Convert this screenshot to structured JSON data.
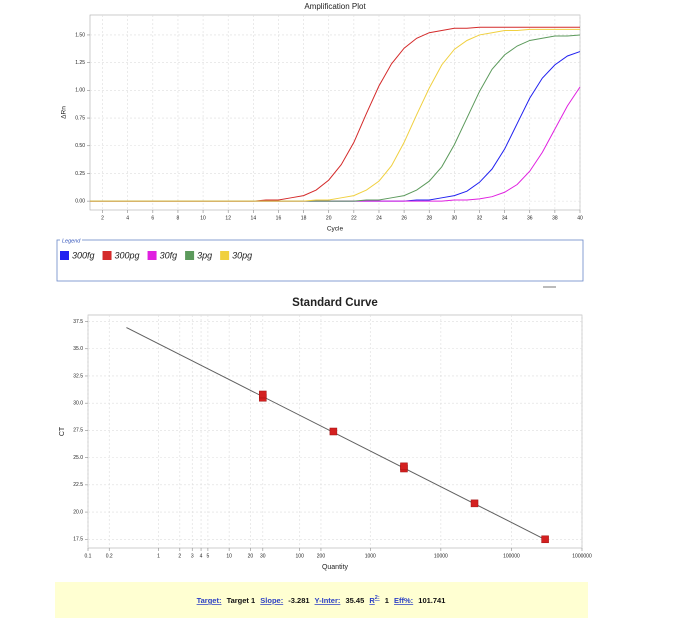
{
  "chart_data": [
    {
      "type": "line",
      "title": "Amplification Plot",
      "x_label": "Cycle",
      "y_label": "ΔRn",
      "x": [
        1,
        2,
        3,
        4,
        5,
        6,
        7,
        8,
        9,
        10,
        11,
        12,
        13,
        14,
        15,
        16,
        17,
        18,
        19,
        20,
        21,
        22,
        23,
        24,
        25,
        26,
        27,
        28,
        29,
        30,
        31,
        32,
        33,
        34,
        35,
        36,
        37,
        38,
        39,
        40
      ],
      "xlim": [
        1,
        40
      ],
      "ylim": [
        -0.08,
        1.68
      ],
      "xticks": [
        2,
        4,
        6,
        8,
        10,
        12,
        14,
        16,
        18,
        20,
        22,
        24,
        26,
        28,
        30,
        32,
        34,
        36,
        38,
        40
      ],
      "yticks": [
        {
          "value": 0,
          "label": "0.00"
        },
        0.25,
        {
          "value": 0.5,
          "label": "0.50"
        },
        0.75,
        {
          "value": 1,
          "label": "1.00"
        },
        1.25,
        {
          "value": 1.5,
          "label": "1.50"
        }
      ],
      "grid": true,
      "legend": "bottom",
      "legend_title": "Legend",
      "series": [
        {
          "name": "300fg",
          "color": "#2020f0",
          "values": [
            0,
            0,
            0,
            0,
            0,
            0,
            0,
            0,
            0,
            0,
            0,
            0,
            0,
            0,
            0,
            0,
            0,
            0,
            0,
            0,
            0,
            0,
            0,
            0,
            0,
            0,
            0.01,
            0.01,
            0.03,
            0.05,
            0.09,
            0.17,
            0.29,
            0.47,
            0.7,
            0.93,
            1.11,
            1.23,
            1.31,
            1.35
          ]
        },
        {
          "name": "300pg",
          "color": "#d42a2a",
          "values": [
            0,
            0,
            0,
            0,
            0,
            0,
            0,
            0,
            0,
            0,
            0,
            0,
            0,
            0,
            0.01,
            0.01,
            0.03,
            0.05,
            0.1,
            0.19,
            0.33,
            0.53,
            0.79,
            1.04,
            1.24,
            1.38,
            1.47,
            1.52,
            1.54,
            1.56,
            1.56,
            1.57,
            1.57,
            1.57,
            1.57,
            1.57,
            1.57,
            1.57,
            1.57,
            1.57
          ]
        },
        {
          "name": "30fg",
          "color": "#e020e0",
          "values": [
            0,
            0,
            0,
            0,
            0,
            0,
            0,
            0,
            0,
            0,
            0,
            0,
            0,
            0,
            0,
            0,
            0,
            0,
            0,
            0,
            0,
            0,
            0,
            0,
            0,
            0,
            0,
            0,
            0,
            0.01,
            0.01,
            0.02,
            0.04,
            0.08,
            0.15,
            0.27,
            0.44,
            0.65,
            0.86,
            1.03
          ]
        },
        {
          "name": "3pg",
          "color": "#5c9a5c",
          "values": [
            0,
            0,
            0,
            0,
            0,
            0,
            0,
            0,
            0,
            0,
            0,
            0,
            0,
            0,
            0,
            0,
            0,
            0,
            0,
            0,
            0,
            0,
            0.01,
            0.01,
            0.03,
            0.05,
            0.1,
            0.18,
            0.31,
            0.51,
            0.75,
            0.99,
            1.19,
            1.32,
            1.4,
            1.45,
            1.47,
            1.49,
            1.49,
            1.5
          ]
        },
        {
          "name": "30pg",
          "color": "#f0d040",
          "values": [
            0,
            0,
            0,
            0,
            0,
            0,
            0,
            0,
            0,
            0,
            0,
            0,
            0,
            0,
            0,
            0,
            0,
            0,
            0.01,
            0.01,
            0.03,
            0.05,
            0.1,
            0.18,
            0.32,
            0.53,
            0.78,
            1.02,
            1.23,
            1.37,
            1.45,
            1.5,
            1.52,
            1.54,
            1.54,
            1.55,
            1.55,
            1.55,
            1.55,
            1.55
          ]
        }
      ]
    },
    {
      "type": "scatter",
      "title": "Standard Curve",
      "x_label": "Quantity",
      "y_label": "CT",
      "xlog": true,
      "xlim": [
        0.1,
        1000000
      ],
      "ylim": [
        16.7,
        38.1
      ],
      "xticks": [
        0.1,
        0.2,
        1,
        2,
        3,
        4,
        5,
        10,
        20,
        30,
        100,
        200,
        1000,
        10000,
        100000,
        1000000
      ],
      "yticks": [
        17.5,
        {
          "value": 20,
          "label": "20.0"
        },
        22.5,
        {
          "value": 25,
          "label": "25.0"
        },
        27.5,
        {
          "value": 30,
          "label": "30.0"
        },
        32.5,
        {
          "value": 35,
          "label": "35.0"
        },
        37.5
      ],
      "grid": true,
      "series": [
        {
          "mode": "line",
          "color": "#606060",
          "x": [
            0.35,
            300000
          ],
          "values": [
            36.95,
            17.48
          ]
        },
        {
          "color": "#d42020",
          "x": [
            30,
            30,
            300,
            3000,
            3000,
            30000,
            300000
          ],
          "values": [
            30.5,
            30.8,
            27.4,
            24.0,
            24.2,
            20.8,
            17.5
          ]
        }
      ]
    }
  ],
  "stats": {
    "target_label": "Target:",
    "target": "Target 1",
    "slope_label": "Slope:",
    "slope": -3.281,
    "yinter_label": "Y-Inter:",
    "yinter": 35.45,
    "r2_label": "R",
    "r2_sup": "2:",
    "r2": 1,
    "eff_label": "Eff%:",
    "eff": 101.741
  }
}
